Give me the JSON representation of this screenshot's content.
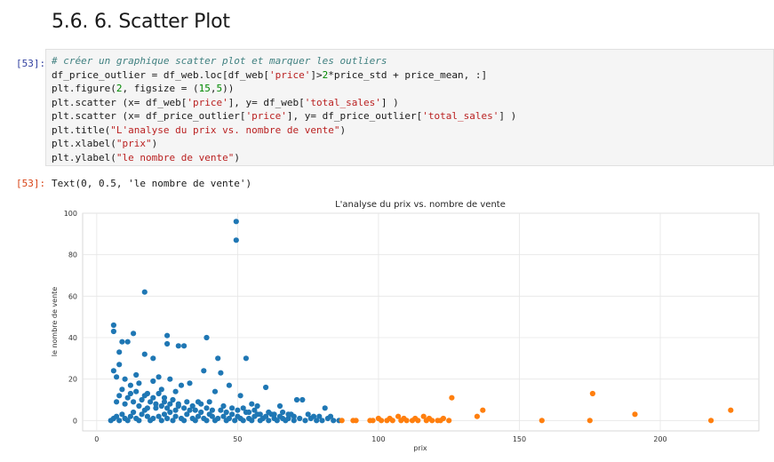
{
  "heading": "5.6. 6. Scatter Plot",
  "cell_in": {
    "prompt": "[53]:",
    "code_lines": [
      "# créer un graphique scatter plot et marquer les outliers",
      "df_price_outlier = df_web.loc[df_web['price']>2*price_std + price_mean, :]",
      "plt.figure(2, figsize = (15,5))",
      "plt.scatter (x= df_web['price'], y= df_web['total_sales'] )",
      "plt.scatter (x= df_price_outlier['price'], y= df_price_outlier['total_sales'] )",
      "plt.title(\"L'analyse du prix vs. nombre de vente\")",
      "plt.xlabel(\"prix\")",
      "plt.ylabel(\"le nombre de vente\")"
    ]
  },
  "cell_out": {
    "prompt": "[53]:",
    "text": "Text(0, 0.5, 'le nombre de vente')"
  },
  "colors": {
    "series_normal": "#1f77b4",
    "series_outlier": "#ff7f0e",
    "grid": "#e6e6e6",
    "code_comment": "#408080",
    "code_string": "#ba2121",
    "code_number": "#008800",
    "code_builtin": "#008000",
    "prompt_in": "#303f9f",
    "prompt_out": "#d84315"
  },
  "chart_data": {
    "type": "scatter",
    "title": "L'analyse du prix vs. nombre de vente",
    "xlabel": "prix",
    "ylabel": "le nombre de vente",
    "xlim": [
      -5,
      235
    ],
    "ylim": [
      -5,
      100
    ],
    "xticks": [
      0,
      50,
      100,
      150,
      200
    ],
    "yticks": [
      0,
      20,
      40,
      60,
      80,
      100
    ],
    "grid": true,
    "series": [
      {
        "color": "#1f77b4",
        "points": [
          [
            49.5,
            96
          ],
          [
            49.5,
            87
          ],
          [
            17,
            62
          ],
          [
            6,
            46
          ],
          [
            6,
            43
          ],
          [
            25,
            41
          ],
          [
            13,
            42
          ],
          [
            25,
            37
          ],
          [
            39,
            40
          ],
          [
            9,
            38
          ],
          [
            11,
            38
          ],
          [
            29,
            36
          ],
          [
            31,
            36
          ],
          [
            17,
            32
          ],
          [
            8,
            33
          ],
          [
            20,
            30
          ],
          [
            43,
            30
          ],
          [
            53,
            30
          ],
          [
            8,
            27
          ],
          [
            6,
            24
          ],
          [
            44,
            23
          ],
          [
            38,
            24
          ],
          [
            7,
            21
          ],
          [
            14,
            22
          ],
          [
            22,
            21
          ],
          [
            26,
            20
          ],
          [
            10,
            20
          ],
          [
            15,
            18
          ],
          [
            20,
            19
          ],
          [
            33,
            18
          ],
          [
            47,
            17
          ],
          [
            60,
            16
          ],
          [
            30,
            17
          ],
          [
            23,
            15
          ],
          [
            28,
            14
          ],
          [
            42,
            14
          ],
          [
            12,
            13
          ],
          [
            18,
            13
          ],
          [
            24,
            11
          ],
          [
            51,
            12
          ],
          [
            71,
            10
          ],
          [
            73,
            10
          ],
          [
            36,
            9
          ],
          [
            55,
            8
          ],
          [
            57,
            7
          ],
          [
            65,
            7
          ],
          [
            81,
            6
          ],
          [
            5,
            0
          ],
          [
            6,
            1
          ],
          [
            7,
            2
          ],
          [
            8,
            0
          ],
          [
            9,
            3
          ],
          [
            10,
            1
          ],
          [
            11,
            0
          ],
          [
            12,
            2
          ],
          [
            13,
            4
          ],
          [
            14,
            1
          ],
          [
            15,
            0
          ],
          [
            16,
            3
          ],
          [
            17,
            5
          ],
          [
            18,
            2
          ],
          [
            19,
            0
          ],
          [
            20,
            1
          ],
          [
            21,
            6
          ],
          [
            22,
            2
          ],
          [
            23,
            0
          ],
          [
            24,
            3
          ],
          [
            25,
            1
          ],
          [
            26,
            4
          ],
          [
            27,
            0
          ],
          [
            28,
            2
          ],
          [
            29,
            7
          ],
          [
            30,
            1
          ],
          [
            31,
            0
          ],
          [
            32,
            3
          ],
          [
            33,
            5
          ],
          [
            34,
            1
          ],
          [
            35,
            0
          ],
          [
            36,
            2
          ],
          [
            37,
            4
          ],
          [
            38,
            1
          ],
          [
            39,
            0
          ],
          [
            40,
            3
          ],
          [
            41,
            2
          ],
          [
            42,
            0
          ],
          [
            43,
            1
          ],
          [
            44,
            5
          ],
          [
            45,
            2
          ],
          [
            46,
            0
          ],
          [
            47,
            1
          ],
          [
            48,
            3
          ],
          [
            49,
            0
          ],
          [
            50,
            2
          ],
          [
            51,
            1
          ],
          [
            52,
            0
          ],
          [
            53,
            4
          ],
          [
            54,
            1
          ],
          [
            55,
            0
          ],
          [
            56,
            2
          ],
          [
            57,
            3
          ],
          [
            58,
            0
          ],
          [
            59,
            1
          ],
          [
            60,
            2
          ],
          [
            61,
            0
          ],
          [
            62,
            3
          ],
          [
            63,
            1
          ],
          [
            64,
            0
          ],
          [
            65,
            2
          ],
          [
            66,
            1
          ],
          [
            67,
            0
          ],
          [
            68,
            1
          ],
          [
            69,
            3
          ],
          [
            70,
            0
          ],
          [
            72,
            1
          ],
          [
            74,
            0
          ],
          [
            76,
            1
          ],
          [
            78,
            0
          ],
          [
            80,
            0
          ],
          [
            82,
            1
          ],
          [
            84,
            0
          ],
          [
            86,
            0
          ],
          [
            7,
            9
          ],
          [
            8,
            12
          ],
          [
            9,
            15
          ],
          [
            10,
            8
          ],
          [
            11,
            11
          ],
          [
            12,
            17
          ],
          [
            13,
            9
          ],
          [
            14,
            14
          ],
          [
            15,
            7
          ],
          [
            16,
            10
          ],
          [
            17,
            12
          ],
          [
            18,
            6
          ],
          [
            19,
            9
          ],
          [
            20,
            11
          ],
          [
            21,
            8
          ],
          [
            22,
            13
          ],
          [
            23,
            7
          ],
          [
            24,
            9
          ],
          [
            25,
            6
          ],
          [
            26,
            8
          ],
          [
            27,
            10
          ],
          [
            28,
            5
          ],
          [
            29,
            8
          ],
          [
            31,
            6
          ],
          [
            32,
            9
          ],
          [
            34,
            7
          ],
          [
            35,
            5
          ],
          [
            37,
            8
          ],
          [
            39,
            6
          ],
          [
            40,
            9
          ],
          [
            41,
            5
          ],
          [
            45,
            7
          ],
          [
            46,
            4
          ],
          [
            48,
            6
          ],
          [
            50,
            5
          ],
          [
            52,
            6
          ],
          [
            54,
            4
          ],
          [
            56,
            5
          ],
          [
            58,
            3
          ],
          [
            61,
            4
          ],
          [
            63,
            3
          ],
          [
            66,
            4
          ],
          [
            68,
            3
          ],
          [
            70,
            2
          ],
          [
            75,
            3
          ],
          [
            77,
            2
          ],
          [
            79,
            2
          ],
          [
            83,
            2
          ]
        ]
      },
      {
        "color": "#ff7f0e",
        "points": [
          [
            87,
            0
          ],
          [
            91,
            0
          ],
          [
            92,
            0
          ],
          [
            97,
            0
          ],
          [
            98,
            0
          ],
          [
            100,
            1
          ],
          [
            101,
            0
          ],
          [
            103,
            0
          ],
          [
            104,
            1
          ],
          [
            105,
            0
          ],
          [
            107,
            2
          ],
          [
            108,
            0
          ],
          [
            109,
            1
          ],
          [
            110,
            0
          ],
          [
            112,
            0
          ],
          [
            113,
            1
          ],
          [
            114,
            0
          ],
          [
            116,
            2
          ],
          [
            117,
            0
          ],
          [
            118,
            1
          ],
          [
            119,
            0
          ],
          [
            121,
            0
          ],
          [
            122,
            0
          ],
          [
            123,
            1
          ],
          [
            125,
            0
          ],
          [
            126,
            11
          ],
          [
            135,
            2
          ],
          [
            137,
            5
          ],
          [
            158,
            0
          ],
          [
            175,
            0
          ],
          [
            176,
            13
          ],
          [
            191,
            3
          ],
          [
            218,
            0
          ],
          [
            225,
            5
          ]
        ]
      }
    ]
  }
}
